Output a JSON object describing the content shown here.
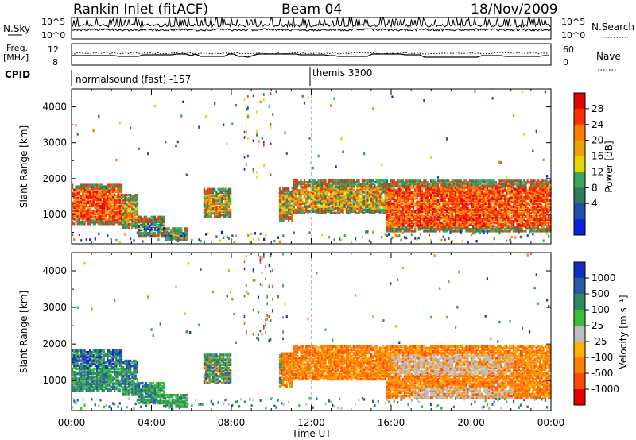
{
  "header": {
    "station": "Rankin Inlet (fitACF)",
    "beam": "Beam 04",
    "date": "18/Nov/2009"
  },
  "top_panels": {
    "nsky_label": "N.Sky",
    "nsky_ticks": [
      "10^5",
      "10^0"
    ],
    "nsearch_label": "N.Search",
    "nsearch_ticks": [
      "10^5",
      "10^0"
    ],
    "freq_label_line1": "Freq.",
    "freq_label_line2": "[MHz]",
    "freq_ticks": [
      "12",
      "8"
    ],
    "nave_label": "Nave",
    "nave_ticks": [
      "60",
      "0"
    ],
    "cpid_label": "CPID",
    "cpid_mode1": "normalsound (fast) -157",
    "cpid_mode2": "themis 3300"
  },
  "chart_data": [
    {
      "type": "heatmap",
      "panel": "power",
      "ylabel": "Slant Range [km]",
      "xlabel": "Time UT",
      "x_ticks": [
        "00:00",
        "04:00",
        "08:00",
        "12:00",
        "16:00",
        "20:00",
        "00:00"
      ],
      "x_range_hours": [
        0,
        24
      ],
      "y_ticks": [
        1000,
        2000,
        3000,
        4000
      ],
      "y_range_km": [
        180,
        4500
      ],
      "colorbar_label": "Power [dB]",
      "colorbar_ticks": [
        28,
        24,
        20,
        16,
        12,
        8,
        4
      ],
      "colorbar_colors": [
        "#e60000",
        "#ff3000",
        "#ff7a00",
        "#f0a000",
        "#e8d200",
        "#3aa858",
        "#2e7d5a",
        "#1f4fa8",
        "#0a1fe0"
      ]
    },
    {
      "type": "heatmap",
      "panel": "velocity",
      "ylabel": "Slant Range [km]",
      "xlabel": "Time UT",
      "x_ticks": [
        "00:00",
        "04:00",
        "08:00",
        "12:00",
        "16:00",
        "20:00",
        "00:00"
      ],
      "x_range_hours": [
        0,
        24
      ],
      "y_ticks": [
        1000,
        2000,
        3000,
        4000
      ],
      "y_range_km": [
        180,
        4500
      ],
      "colorbar_label": "Velocity [m s⁻¹]",
      "colorbar_ticks": [
        1000,
        500,
        100,
        25,
        -25,
        -100,
        -500,
        -1000
      ],
      "colorbar_colors": [
        "#1230c0",
        "#2a5aa8",
        "#2e8a5a",
        "#39c03a",
        "#bdbdbd",
        "#ffb000",
        "#ff8000",
        "#ff4a00",
        "#e60000"
      ]
    }
  ]
}
